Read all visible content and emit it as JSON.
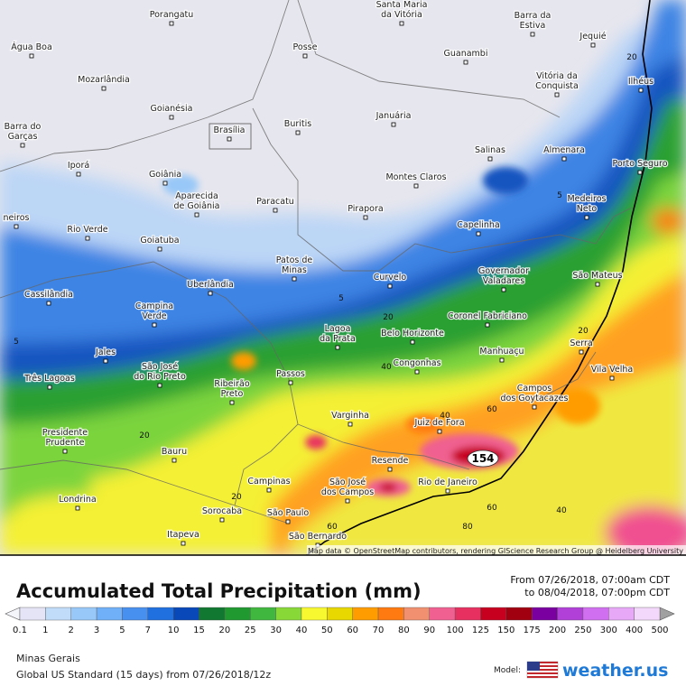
{
  "map": {
    "cities": [
      {
        "lines": [
          "Santa Maria",
          "da Vitória"
        ]
      },
      {
        "lines": [
          "Porangatu"
        ]
      },
      {
        "lines": [
          "Barra da",
          "Estiva"
        ]
      },
      {
        "lines": [
          "Água Boa"
        ]
      },
      {
        "lines": [
          "Posse"
        ]
      },
      {
        "lines": [
          "Guanambi"
        ]
      },
      {
        "lines": [
          "Jequié"
        ]
      },
      {
        "lines": [
          "Mozarlândia"
        ]
      },
      {
        "lines": [
          "Vitória da",
          "Conquista"
        ]
      },
      {
        "lines": [
          "Ilhéus"
        ]
      },
      {
        "lines": [
          "Goianésia"
        ]
      },
      {
        "lines": [
          "Brasília"
        ]
      },
      {
        "lines": [
          "Buritis"
        ]
      },
      {
        "lines": [
          "Januária"
        ]
      },
      {
        "lines": [
          "Barra do",
          "Garças"
        ]
      },
      {
        "lines": [
          "Salinas"
        ]
      },
      {
        "lines": [
          "Almenara"
        ]
      },
      {
        "lines": [
          "Iporá"
        ]
      },
      {
        "lines": [
          "Goiânia"
        ]
      },
      {
        "lines": [
          "Montes Claros"
        ]
      },
      {
        "lines": [
          "Porto Seguro"
        ]
      },
      {
        "lines": [
          "Aparecida",
          "de Goiânia"
        ]
      },
      {
        "lines": [
          "Paracatu"
        ]
      },
      {
        "lines": [
          "Pirapora"
        ]
      },
      {
        "lines": [
          "Medeiros",
          "Neto"
        ]
      },
      {
        "lines": [
          "neiros"
        ]
      },
      {
        "lines": [
          "Capelinha"
        ]
      },
      {
        "lines": [
          "Rio Verde"
        ]
      },
      {
        "lines": [
          "Goiatuba"
        ]
      },
      {
        "lines": [
          "Patos de",
          "Minas"
        ]
      },
      {
        "lines": [
          "Governador",
          "Valadares"
        ]
      },
      {
        "lines": [
          "São Mateus"
        ]
      },
      {
        "lines": [
          "Curvelo"
        ]
      },
      {
        "lines": [
          "Uberlândia"
        ]
      },
      {
        "lines": [
          "Cassilândia"
        ]
      },
      {
        "lines": [
          "Campina",
          "Verde"
        ]
      },
      {
        "lines": [
          "Coronel Fabriciano"
        ]
      },
      {
        "lines": [
          "Lagoa",
          "da Prata"
        ]
      },
      {
        "lines": [
          "Belo Horizonte"
        ]
      },
      {
        "lines": [
          "Serra"
        ]
      },
      {
        "lines": [
          "Jales"
        ]
      },
      {
        "lines": [
          "Manhuaçu"
        ]
      },
      {
        "lines": [
          "Congonhas"
        ]
      },
      {
        "lines": [
          "Vila Velha"
        ]
      },
      {
        "lines": [
          "São José",
          "do Rio Preto"
        ]
      },
      {
        "lines": [
          "Três Lagoas"
        ]
      },
      {
        "lines": [
          "Passos"
        ]
      },
      {
        "lines": [
          "Ribeirão",
          "Preto"
        ]
      },
      {
        "lines": [
          "Campos",
          "dos Goytacazes"
        ]
      },
      {
        "lines": [
          "Varginha"
        ]
      },
      {
        "lines": [
          "Juiz de Fora"
        ]
      },
      {
        "lines": [
          "Presidente",
          "Prudente"
        ]
      },
      {
        "lines": [
          "Bauru"
        ]
      },
      {
        "lines": [
          "Resende"
        ]
      },
      {
        "lines": [
          "Campinas"
        ]
      },
      {
        "lines": [
          "São José",
          "dos Campos"
        ]
      },
      {
        "lines": [
          "Rio de Janeiro"
        ]
      },
      {
        "lines": [
          "Londrina"
        ]
      },
      {
        "lines": [
          "Sorocaba"
        ]
      },
      {
        "lines": [
          "São Paulo"
        ]
      },
      {
        "lines": [
          "São Bernardo"
        ]
      },
      {
        "lines": [
          "Itapeva"
        ]
      }
    ],
    "contours": [
      "5",
      "5",
      "20",
      "40",
      "20",
      "20",
      "40",
      "60",
      "60",
      "40",
      "80",
      "60",
      "20",
      "20",
      "5"
    ],
    "max_label": "154",
    "attribution": "Map data © OpenStreetMap contributors, rendering GIScience Research Group @ Heidelberg University"
  },
  "legend": {
    "title": "Accumulated Total Precipitation (mm)",
    "from": "From 07/26/2018, 07:00am CDT",
    "to": "to 08/04/2018, 07:00pm CDT",
    "scale": [
      0.1,
      1,
      2,
      3,
      5,
      7,
      10,
      15,
      20,
      25,
      30,
      40,
      50,
      60,
      70,
      80,
      90,
      100,
      125,
      150,
      175,
      200,
      250,
      300,
      400,
      500
    ],
    "colors": [
      "#e4e4f6",
      "#c0dcf8",
      "#98c8f8",
      "#70b0f8",
      "#4890f0",
      "#2070e0",
      "#0848b8",
      "#107830",
      "#209a30",
      "#40b840",
      "#88d838",
      "#f8f830",
      "#e8d800",
      "#ff9c00",
      "#ff7a10",
      "#f09070",
      "#f06090",
      "#e83060",
      "#c80020",
      "#a00010",
      "#7a00a0",
      "#b040d8",
      "#d070f0",
      "#e8a8f8",
      "#f4d8fc"
    ]
  },
  "footer": {
    "region": "Minas Gerais",
    "model_run": "Global US Standard (15 days) from 07/26/2018/12z",
    "model_label": "Model:",
    "brand": "weather.us"
  }
}
